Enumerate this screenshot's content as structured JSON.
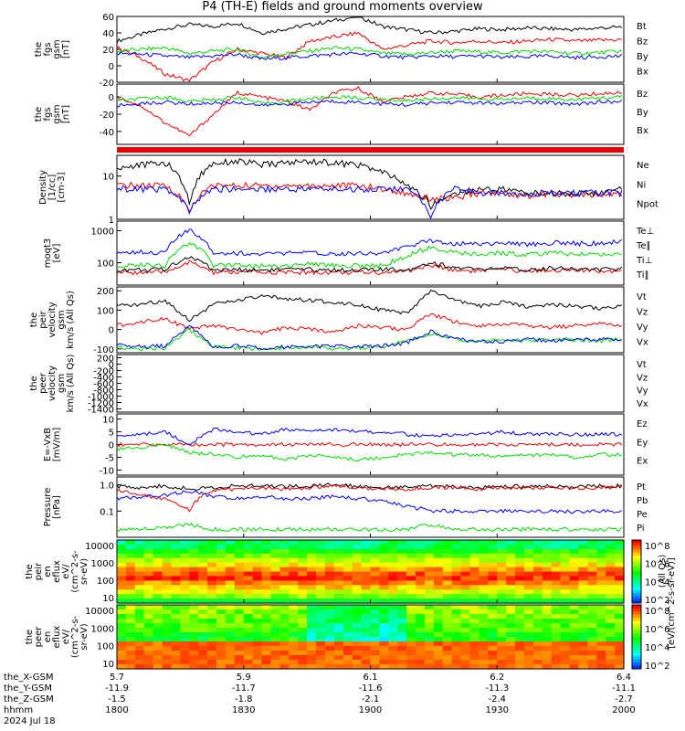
{
  "title": "P4 (TH-E) fields and ground moments overview",
  "colors": {
    "black": "#000000",
    "red": "#ee0000",
    "green": "#00dd00",
    "blue": "#0000ff"
  },
  "x_ticks": [
    "1800",
    "1830",
    "1900",
    "1930",
    "2000"
  ],
  "orbit": {
    "labels": [
      "the_X-GSM",
      "the_Y-GSM",
      "the_Z-GSM",
      "hhmm",
      "2024 Jul 18"
    ],
    "x": [
      "5.7",
      "5.9",
      "6.1",
      "6.2",
      "6.4"
    ],
    "y": [
      "-11.9",
      "-11.7",
      "-11.6",
      "-11.3",
      "-11.1"
    ],
    "z": [
      "-1.5",
      "-1.8",
      "-2.1",
      "-2.4",
      "-2.7"
    ]
  },
  "colorbar": {
    "ticks": [
      "10^8",
      "10^6",
      "10^4",
      "10^2"
    ],
    "label": "[eV/(cm^2-s-sr-eV)]",
    "label2": "(All Qs)"
  },
  "chart_data": [
    {
      "type": "line",
      "ylabel": [
        "the",
        "fgs",
        "gsm",
        "[nT]"
      ],
      "ylim": [
        -20,
        60
      ],
      "yticks": [
        "60",
        "40",
        "20",
        "0",
        "-20"
      ],
      "series": [
        {
          "name": "Bt",
          "values": [
            30,
            38,
            45,
            50,
            48,
            52,
            40,
            45,
            50,
            55,
            60,
            48,
            44,
            40,
            42,
            45,
            44,
            46,
            45,
            44,
            46,
            47
          ]
        },
        {
          "name": "Bz",
          "values": [
            22,
            10,
            -10,
            -18,
            5,
            20,
            15,
            10,
            30,
            35,
            40,
            20,
            25,
            30,
            28,
            30,
            28,
            30,
            32,
            30,
            31,
            32
          ]
        },
        {
          "name": "By",
          "values": [
            18,
            20,
            22,
            15,
            18,
            20,
            10,
            15,
            18,
            22,
            20,
            15,
            14,
            16,
            18,
            17,
            16,
            18,
            17,
            15,
            16,
            18
          ]
        },
        {
          "name": "Bx",
          "values": [
            15,
            14,
            12,
            10,
            12,
            14,
            8,
            10,
            12,
            14,
            15,
            12,
            10,
            12,
            11,
            12,
            10,
            11,
            12,
            10,
            11,
            12
          ]
        }
      ]
    },
    {
      "type": "line",
      "ylabel": [
        "the",
        "fgs",
        "gsm",
        "[nT]"
      ],
      "ylim": [
        -55,
        15
      ],
      "yticks": [
        "0",
        "-20",
        "-40"
      ],
      "series": [
        {
          "name": "Bz",
          "values": [
            0,
            -10,
            -30,
            -45,
            -20,
            5,
            0,
            -5,
            -15,
            5,
            10,
            -5,
            0,
            5,
            3,
            0,
            2,
            4,
            3,
            2,
            4,
            5
          ]
        },
        {
          "name": "By",
          "values": [
            -5,
            -2,
            0,
            -5,
            -3,
            0,
            -8,
            -5,
            -2,
            0,
            -1,
            -3,
            -4,
            -2,
            -1,
            -2,
            -3,
            -1,
            -2,
            -3,
            -1,
            0
          ]
        },
        {
          "name": "Bx",
          "values": [
            -10,
            -8,
            -6,
            -8,
            -7,
            -6,
            -10,
            -8,
            -6,
            -5,
            -6,
            -8,
            -9,
            -7,
            -6,
            -7,
            -8,
            -6,
            -7,
            -8,
            -6,
            -5
          ]
        }
      ]
    },
    {
      "type": "line",
      "ylabel": [
        "Density",
        "[1/cc]",
        "[cm-3]"
      ],
      "ylim": [
        1,
        30
      ],
      "log": true,
      "yticks": [
        "10",
        "1"
      ],
      "series": [
        {
          "name": "Ne",
          "values": [
            6,
            6,
            6,
            1.5,
            6,
            6,
            6,
            6,
            6,
            6,
            6,
            5,
            4,
            3,
            3,
            4,
            4,
            3.5,
            4,
            3.5,
            3.5,
            4
          ]
        },
        {
          "name": "Ni",
          "values": [
            15,
            18,
            20,
            2,
            20,
            22,
            18,
            20,
            22,
            20,
            18,
            12,
            6,
            2,
            4,
            5,
            5,
            4,
            4,
            4,
            4,
            5
          ]
        },
        {
          "name": "Npot",
          "values": [
            5,
            5,
            5,
            1.5,
            5,
            5,
            5,
            5,
            5,
            5,
            5,
            5,
            5,
            1.2,
            5,
            4,
            4,
            4,
            4,
            4,
            4,
            4
          ]
        }
      ]
    },
    {
      "type": "line",
      "ylabel": [
        "moqt3",
        "[eV]"
      ],
      "ylim": [
        20,
        2000
      ],
      "log": true,
      "yticks": [
        "1000",
        "100"
      ],
      "series": [
        {
          "name": "Te⊥",
          "values": [
            50,
            50,
            50,
            100,
            50,
            50,
            50,
            50,
            50,
            50,
            50,
            50,
            55,
            80,
            60,
            55,
            60,
            55,
            60,
            58,
            55,
            60
          ]
        },
        {
          "name": "Te∥",
          "values": [
            60,
            60,
            60,
            150,
            60,
            60,
            60,
            60,
            60,
            60,
            60,
            60,
            60,
            100,
            70,
            60,
            65,
            60,
            70,
            65,
            60,
            65
          ]
        },
        {
          "name": "Ti⊥",
          "values": [
            200,
            220,
            200,
            1000,
            200,
            200,
            180,
            200,
            200,
            190,
            200,
            200,
            300,
            500,
            400,
            400,
            400,
            380,
            420,
            400,
            400,
            450
          ]
        },
        {
          "name": "Ti∥",
          "values": [
            80,
            90,
            80,
            400,
            80,
            90,
            80,
            80,
            90,
            85,
            80,
            80,
            150,
            300,
            200,
            180,
            200,
            180,
            200,
            190,
            180,
            200
          ]
        }
      ]
    },
    {
      "type": "line",
      "ylabel": [
        "the",
        "peir",
        "velocity",
        "gsm",
        "km/s (All Qs)"
      ],
      "ylim": [
        -120,
        220
      ],
      "yticks": [
        "200",
        "100",
        "0",
        "-100"
      ],
      "series": [
        {
          "name": "Vt",
          "values": [
            120,
            130,
            150,
            50,
            130,
            150,
            170,
            160,
            150,
            140,
            130,
            100,
            80,
            200,
            150,
            120,
            140,
            120,
            130,
            120,
            110,
            120
          ]
        },
        {
          "name": "Vz",
          "values": [
            20,
            40,
            60,
            0,
            20,
            0,
            -20,
            10,
            0,
            -10,
            20,
            10,
            0,
            80,
            40,
            20,
            30,
            20,
            10,
            20,
            30,
            20
          ]
        },
        {
          "name": "Vy",
          "values": [
            -90,
            -100,
            -95,
            0,
            -90,
            -95,
            -100,
            -95,
            -90,
            -100,
            -95,
            -90,
            -60,
            -20,
            -50,
            -60,
            -55,
            -60,
            -50,
            -55,
            -60,
            -50
          ]
        },
        {
          "name": "Vx",
          "values": [
            -80,
            -90,
            -85,
            20,
            -90,
            -85,
            -95,
            -90,
            -90,
            -85,
            -90,
            -85,
            -70,
            -10,
            -50,
            -60,
            -65,
            -50,
            -60,
            -55,
            -50,
            -60
          ]
        }
      ]
    },
    {
      "type": "line",
      "ylabel": [
        "the",
        "peer",
        "velocity",
        "gsm",
        "km/s (All Qs)"
      ],
      "ylim": [
        -1500,
        300
      ],
      "yticks": [
        "200",
        "0",
        "-200",
        "-400",
        "-600",
        "-800",
        "-1000",
        "-1200",
        "-1400"
      ],
      "series": [
        {
          "name": "Vt",
          "values": []
        },
        {
          "name": "Vz",
          "values": []
        },
        {
          "name": "Vy",
          "values": []
        },
        {
          "name": "Vx",
          "values": []
        }
      ]
    },
    {
      "type": "line",
      "ylabel": [
        "E=-VxB",
        "[mV/m]"
      ],
      "ylim": [
        -12,
        12
      ],
      "yticks": [
        "10",
        "5",
        "0",
        "-5",
        "-10"
      ],
      "series": [
        {
          "name": "Ez",
          "values": [
            0,
            0,
            0,
            0,
            0,
            0,
            0,
            0,
            0,
            0,
            0,
            0,
            0,
            0,
            0,
            0,
            0,
            0,
            0,
            0,
            0,
            0
          ]
        },
        {
          "name": "Ey",
          "values": [
            -2,
            -1,
            0,
            -3,
            -4,
            -5,
            -4,
            -6,
            -4,
            -5,
            -6,
            -5,
            -4,
            -3,
            -4,
            -4,
            -5,
            -4,
            -4,
            -5,
            -4,
            -4
          ]
        },
        {
          "name": "Ex",
          "values": [
            3,
            4,
            5,
            0,
            6,
            5,
            4,
            6,
            5,
            6,
            5,
            5,
            4,
            3,
            4,
            4,
            5,
            4,
            4,
            4,
            4,
            4
          ]
        }
      ]
    },
    {
      "type": "line",
      "ylabel": [
        "Pressure",
        "[nPa]"
      ],
      "ylim": [
        0.01,
        2
      ],
      "log": true,
      "yticks": [
        "1.0",
        "0.1"
      ],
      "series": [
        {
          "name": "Pt",
          "values": [
            0.9,
            0.8,
            0.9,
            0.7,
            0.8,
            0.9,
            0.9,
            0.9,
            0.9,
            1.0,
            0.9,
            0.8,
            0.8,
            0.9,
            0.85,
            0.8,
            0.9,
            0.85,
            0.9,
            0.85,
            0.9,
            0.9
          ]
        },
        {
          "name": "Pb",
          "values": [
            0.6,
            0.4,
            0.3,
            0.1,
            0.6,
            0.7,
            0.8,
            0.7,
            0.8,
            0.9,
            0.8,
            0.7,
            0.7,
            0.8,
            0.8,
            0.7,
            0.8,
            0.75,
            0.8,
            0.75,
            0.8,
            0.85
          ]
        },
        {
          "name": "Pe",
          "values": [
            0.02,
            0.02,
            0.025,
            0.03,
            0.02,
            0.02,
            0.02,
            0.02,
            0.02,
            0.02,
            0.02,
            0.02,
            0.02,
            0.03,
            0.02,
            0.02,
            0.02,
            0.02,
            0.02,
            0.02,
            0.02,
            0.02
          ]
        },
        {
          "name": "Pi",
          "values": [
            0.3,
            0.35,
            0.4,
            0.6,
            0.35,
            0.3,
            0.35,
            0.3,
            0.3,
            0.35,
            0.3,
            0.25,
            0.15,
            0.1,
            0.1,
            0.1,
            0.1,
            0.09,
            0.1,
            0.09,
            0.1,
            0.1
          ]
        }
      ]
    },
    {
      "type": "heatmap",
      "ylabel": [
        "the",
        "peir",
        "en",
        "eflux",
        "eV/",
        "(cm^2-s-",
        "sr-eV)"
      ],
      "yticks": [
        "10000",
        "1000",
        "100",
        "10"
      ]
    },
    {
      "type": "heatmap",
      "ylabel": [
        "the",
        "peer",
        "en",
        "eflux",
        "eV/",
        "(cm^2-s-",
        "sr-eV)"
      ],
      "yticks": [
        "10000",
        "1000",
        "100",
        "10"
      ]
    }
  ]
}
